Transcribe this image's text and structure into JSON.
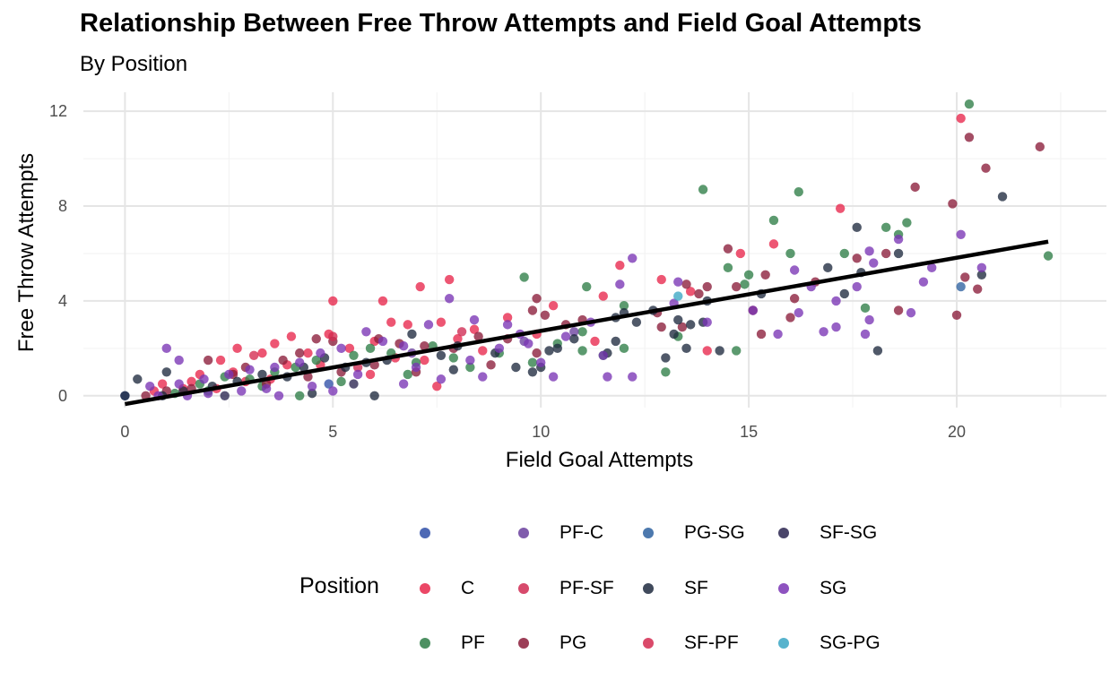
{
  "title": "Relationship Between Free Throw Attempts and Field Goal Attempts",
  "subtitle": "By Position",
  "legend": {
    "title": "Position",
    "items": [
      {
        "label": "",
        "color": "#2f4fa8"
      },
      {
        "label": "C",
        "color": "#e8274b"
      },
      {
        "label": "PF",
        "color": "#2e7d46"
      },
      {
        "label": "PF-C",
        "color": "#6a3f9e"
      },
      {
        "label": "PF-SF",
        "color": "#d02a52"
      },
      {
        "label": "PG",
        "color": "#8b1c3a"
      },
      {
        "label": "PG-SG",
        "color": "#2e62a0"
      },
      {
        "label": "SF",
        "color": "#1f2a3f"
      },
      {
        "label": "SF-PF",
        "color": "#d32a50"
      },
      {
        "label": "SF-SG",
        "color": "#2a2450"
      },
      {
        "label": "SG",
        "color": "#7a35b5"
      },
      {
        "label": "SG-PG",
        "color": "#3aa6c4"
      }
    ]
  },
  "chart_data": {
    "type": "scatter",
    "title": "Relationship Between Free Throw Attempts and Field Goal Attempts",
    "subtitle": "By Position",
    "xlabel": "Field Goal Attempts",
    "ylabel": "Free Throw Attempts",
    "xlim": [
      -1,
      23.6
    ],
    "ylim": [
      -0.5,
      12.8
    ],
    "x_ticks": [
      0,
      5,
      10,
      15,
      20
    ],
    "y_ticks": [
      0,
      4,
      8,
      12
    ],
    "x_tick_labels": [
      "0",
      "5",
      "10",
      "15",
      "20"
    ],
    "y_tick_labels": [
      "0",
      "4",
      "8",
      "12"
    ],
    "grid": true,
    "legend_position": "bottom",
    "trend_line": {
      "x": [
        0,
        22.2
      ],
      "y": [
        -0.35,
        6.5
      ]
    },
    "series": [
      {
        "name": "",
        "points": [
          [
            0.0,
            0.0
          ],
          [
            4.9,
            0.5
          ]
        ]
      },
      {
        "name": "C",
        "points": [
          [
            20.1,
            11.7
          ],
          [
            17.2,
            7.9
          ],
          [
            15.6,
            6.4
          ],
          [
            14.8,
            6.0
          ],
          [
            7.8,
            4.9
          ],
          [
            11.9,
            5.5
          ],
          [
            5.0,
            4.0
          ],
          [
            6.2,
            4.0
          ],
          [
            7.1,
            4.6
          ],
          [
            10.3,
            3.8
          ],
          [
            11.5,
            4.2
          ],
          [
            12.9,
            4.9
          ],
          [
            13.6,
            4.4
          ],
          [
            2.7,
            2.0
          ],
          [
            3.6,
            2.2
          ],
          [
            4.0,
            2.5
          ],
          [
            4.9,
            2.6
          ],
          [
            6.4,
            3.1
          ],
          [
            6.8,
            3.0
          ],
          [
            7.6,
            3.1
          ],
          [
            8.4,
            2.8
          ],
          [
            9.2,
            3.3
          ],
          [
            2.3,
            1.5
          ],
          [
            3.3,
            1.8
          ],
          [
            4.4,
            1.8
          ],
          [
            5.4,
            2.0
          ],
          [
            6.0,
            2.3
          ],
          [
            8.0,
            2.4
          ],
          [
            9.9,
            2.6
          ],
          [
            11.3,
            2.3
          ],
          [
            1.8,
            0.9
          ],
          [
            2.6,
            1.0
          ],
          [
            3.9,
            1.3
          ],
          [
            4.7,
            1.3
          ],
          [
            6.5,
            1.6
          ],
          [
            7.2,
            1.5
          ],
          [
            8.6,
            1.9
          ],
          [
            0.9,
            0.5
          ],
          [
            1.6,
            0.6
          ],
          [
            2.9,
            0.6
          ],
          [
            3.5,
            0.7
          ],
          [
            5.9,
            0.9
          ],
          [
            7.5,
            0.4
          ],
          [
            0.7,
            0.2
          ],
          [
            1.4,
            0.3
          ],
          [
            2.2,
            0.3
          ],
          [
            14.0,
            1.9
          ]
        ]
      },
      {
        "name": "PF",
        "points": [
          [
            20.3,
            12.3
          ],
          [
            13.9,
            8.7
          ],
          [
            16.2,
            8.6
          ],
          [
            15.6,
            7.4
          ],
          [
            18.3,
            7.1
          ],
          [
            18.8,
            7.3
          ],
          [
            18.6,
            6.8
          ],
          [
            16.0,
            6.0
          ],
          [
            17.3,
            6.0
          ],
          [
            22.2,
            5.9
          ],
          [
            14.5,
            5.4
          ],
          [
            15.0,
            5.1
          ],
          [
            14.9,
            4.7
          ],
          [
            9.6,
            5.0
          ],
          [
            11.1,
            4.6
          ],
          [
            12.0,
            3.8
          ],
          [
            17.8,
            3.7
          ],
          [
            11.0,
            2.7
          ],
          [
            12.0,
            2.0
          ],
          [
            13.3,
            2.5
          ],
          [
            14.7,
            1.9
          ],
          [
            13.0,
            1.0
          ],
          [
            11.0,
            1.9
          ],
          [
            11.5,
            1.7
          ],
          [
            9.8,
            1.4
          ],
          [
            10.4,
            2.2
          ],
          [
            7.9,
            1.6
          ],
          [
            7.0,
            1.4
          ],
          [
            6.4,
            1.8
          ],
          [
            5.9,
            2.0
          ],
          [
            5.5,
            1.7
          ],
          [
            4.6,
            1.5
          ],
          [
            4.1,
            1.2
          ],
          [
            3.6,
            1.0
          ],
          [
            3.0,
            0.7
          ],
          [
            2.4,
            0.8
          ],
          [
            1.8,
            0.5
          ],
          [
            6.8,
            0.9
          ],
          [
            8.3,
            1.2
          ],
          [
            9.0,
            1.8
          ],
          [
            5.2,
            0.6
          ],
          [
            4.2,
            0.0
          ],
          [
            3.3,
            0.4
          ],
          [
            2.0,
            0.2
          ],
          [
            1.2,
            0.1
          ],
          [
            7.4,
            2.1
          ]
        ]
      },
      {
        "name": "PF-C",
        "points": [
          [
            9.6,
            2.3
          ],
          [
            10.8,
            2.7
          ],
          [
            6.9,
            1.8
          ]
        ]
      },
      {
        "name": "PF-SF",
        "points": [
          [
            8.1,
            2.7
          ],
          [
            5.6,
            1.2
          ]
        ]
      },
      {
        "name": "PG",
        "points": [
          [
            20.3,
            10.9
          ],
          [
            22.0,
            10.5
          ],
          [
            20.7,
            9.6
          ],
          [
            19.0,
            8.8
          ],
          [
            19.9,
            8.1
          ],
          [
            14.5,
            6.2
          ],
          [
            17.6,
            5.8
          ],
          [
            18.3,
            6.0
          ],
          [
            15.4,
            5.1
          ],
          [
            16.6,
            4.8
          ],
          [
            14.7,
            4.6
          ],
          [
            14.0,
            4.6
          ],
          [
            13.8,
            4.3
          ],
          [
            16.1,
            4.1
          ],
          [
            15.1,
            3.6
          ],
          [
            16.0,
            3.3
          ],
          [
            18.6,
            3.6
          ],
          [
            20.0,
            3.4
          ],
          [
            20.5,
            4.5
          ],
          [
            20.2,
            5.0
          ],
          [
            15.3,
            2.6
          ],
          [
            13.4,
            2.9
          ],
          [
            12.9,
            2.9
          ],
          [
            9.9,
            4.1
          ],
          [
            10.1,
            3.4
          ],
          [
            9.8,
            3.6
          ],
          [
            10.6,
            3.0
          ],
          [
            11.0,
            3.2
          ],
          [
            9.2,
            2.4
          ],
          [
            8.5,
            2.5
          ],
          [
            7.9,
            2.0
          ],
          [
            7.2,
            2.1
          ],
          [
            6.6,
            2.2
          ],
          [
            6.1,
            2.4
          ],
          [
            5.0,
            2.3
          ],
          [
            4.6,
            2.4
          ],
          [
            4.2,
            1.8
          ],
          [
            3.8,
            1.5
          ],
          [
            2.9,
            1.2
          ],
          [
            2.0,
            1.5
          ],
          [
            2.6,
            0.9
          ],
          [
            3.4,
            0.5
          ],
          [
            4.4,
            0.8
          ],
          [
            5.2,
            1.0
          ],
          [
            6.0,
            1.3
          ],
          [
            7.0,
            1.0
          ],
          [
            8.8,
            1.3
          ],
          [
            9.9,
            1.8
          ],
          [
            1.6,
            0.3
          ],
          [
            0.5,
            0.0
          ],
          [
            1.0,
            0.2
          ],
          [
            12.8,
            3.5
          ],
          [
            13.5,
            4.7
          ]
        ]
      },
      {
        "name": "PG-SG",
        "points": [
          [
            20.1,
            4.6
          ]
        ]
      },
      {
        "name": "SF",
        "points": [
          [
            21.1,
            8.4
          ],
          [
            17.6,
            7.1
          ],
          [
            16.9,
            5.4
          ],
          [
            17.7,
            5.2
          ],
          [
            18.6,
            6.0
          ],
          [
            20.6,
            5.1
          ],
          [
            15.3,
            4.3
          ],
          [
            14.0,
            4.0
          ],
          [
            12.7,
            3.6
          ],
          [
            12.3,
            3.1
          ],
          [
            13.3,
            3.2
          ],
          [
            13.6,
            3.0
          ],
          [
            13.9,
            3.1
          ],
          [
            17.3,
            4.3
          ],
          [
            18.1,
            1.9
          ],
          [
            14.3,
            1.9
          ],
          [
            13.5,
            2.0
          ],
          [
            13.2,
            2.6
          ],
          [
            13.0,
            1.6
          ],
          [
            11.8,
            2.3
          ],
          [
            11.8,
            3.3
          ],
          [
            10.8,
            2.4
          ],
          [
            10.4,
            2.0
          ],
          [
            10.0,
            1.2
          ],
          [
            9.4,
            1.2
          ],
          [
            8.9,
            1.8
          ],
          [
            8.0,
            2.1
          ],
          [
            7.6,
            1.7
          ],
          [
            6.9,
            2.6
          ],
          [
            6.3,
            1.5
          ],
          [
            5.8,
            1.4
          ],
          [
            5.3,
            1.2
          ],
          [
            4.8,
            1.6
          ],
          [
            4.3,
            1.2
          ],
          [
            3.9,
            0.8
          ],
          [
            3.3,
            0.9
          ],
          [
            2.7,
            0.6
          ],
          [
            2.1,
            0.4
          ],
          [
            1.4,
            0.2
          ],
          [
            0.9,
            0.0
          ],
          [
            0.0,
            0.0
          ],
          [
            0.3,
            0.7
          ],
          [
            1.0,
            1.0
          ],
          [
            4.5,
            0.1
          ],
          [
            6.0,
            0.0
          ],
          [
            7.9,
            1.1
          ],
          [
            9.8,
            1.0
          ],
          [
            10.2,
            1.9
          ],
          [
            12.0,
            3.5
          ],
          [
            11.6,
            1.8
          ]
        ]
      },
      {
        "name": "SF-PF",
        "points": [
          [
            5.0,
            2.5
          ],
          [
            3.1,
            1.7
          ]
        ]
      },
      {
        "name": "SF-SG",
        "points": [
          [
            2.4,
            0.0
          ],
          [
            5.5,
            0.5
          ]
        ]
      },
      {
        "name": "SG",
        "points": [
          [
            20.1,
            6.8
          ],
          [
            17.9,
            6.1
          ],
          [
            18.6,
            6.6
          ],
          [
            19.4,
            5.4
          ],
          [
            20.6,
            5.4
          ],
          [
            18.0,
            5.6
          ],
          [
            19.2,
            4.8
          ],
          [
            16.1,
            5.3
          ],
          [
            16.5,
            4.6
          ],
          [
            17.6,
            4.6
          ],
          [
            18.9,
            3.5
          ],
          [
            17.1,
            4.0
          ],
          [
            17.9,
            3.2
          ],
          [
            17.8,
            2.6
          ],
          [
            16.8,
            2.7
          ],
          [
            17.1,
            2.9
          ],
          [
            15.7,
            2.6
          ],
          [
            16.2,
            3.5
          ],
          [
            15.1,
            3.6
          ],
          [
            14.0,
            3.1
          ],
          [
            13.3,
            4.8
          ],
          [
            13.2,
            3.9
          ],
          [
            12.2,
            5.8
          ],
          [
            11.9,
            4.7
          ],
          [
            11.6,
            0.8
          ],
          [
            12.2,
            0.8
          ],
          [
            10.3,
            0.8
          ],
          [
            11.5,
            1.7
          ],
          [
            7.8,
            4.1
          ],
          [
            7.3,
            3.0
          ],
          [
            8.4,
            3.2
          ],
          [
            9.2,
            3.0
          ],
          [
            9.5,
            2.6
          ],
          [
            10.6,
            2.5
          ],
          [
            11.2,
            3.1
          ],
          [
            6.7,
            2.1
          ],
          [
            6.2,
            2.3
          ],
          [
            5.8,
            2.7
          ],
          [
            5.2,
            2.0
          ],
          [
            4.7,
            1.8
          ],
          [
            4.2,
            1.4
          ],
          [
            3.6,
            1.2
          ],
          [
            3.0,
            1.1
          ],
          [
            2.5,
            0.9
          ],
          [
            1.9,
            0.7
          ],
          [
            1.3,
            0.5
          ],
          [
            0.6,
            0.4
          ],
          [
            1.0,
            2.0
          ],
          [
            1.3,
            1.5
          ],
          [
            2.0,
            0.1
          ],
          [
            3.7,
            0.0
          ],
          [
            5.0,
            0.2
          ],
          [
            6.7,
            0.5
          ],
          [
            7.6,
            0.7
          ],
          [
            8.6,
            0.8
          ],
          [
            8.3,
            1.5
          ],
          [
            9.0,
            2.0
          ],
          [
            10.0,
            1.4
          ],
          [
            9.7,
            2.2
          ],
          [
            7.0,
            1.2
          ],
          [
            5.6,
            0.9
          ],
          [
            4.5,
            0.4
          ],
          [
            3.4,
            0.3
          ],
          [
            2.8,
            0.2
          ],
          [
            1.5,
            0.0
          ],
          [
            0.8,
            0.0
          ]
        ]
      },
      {
        "name": "SG-PG",
        "points": [
          [
            13.3,
            4.2
          ]
        ]
      }
    ]
  }
}
